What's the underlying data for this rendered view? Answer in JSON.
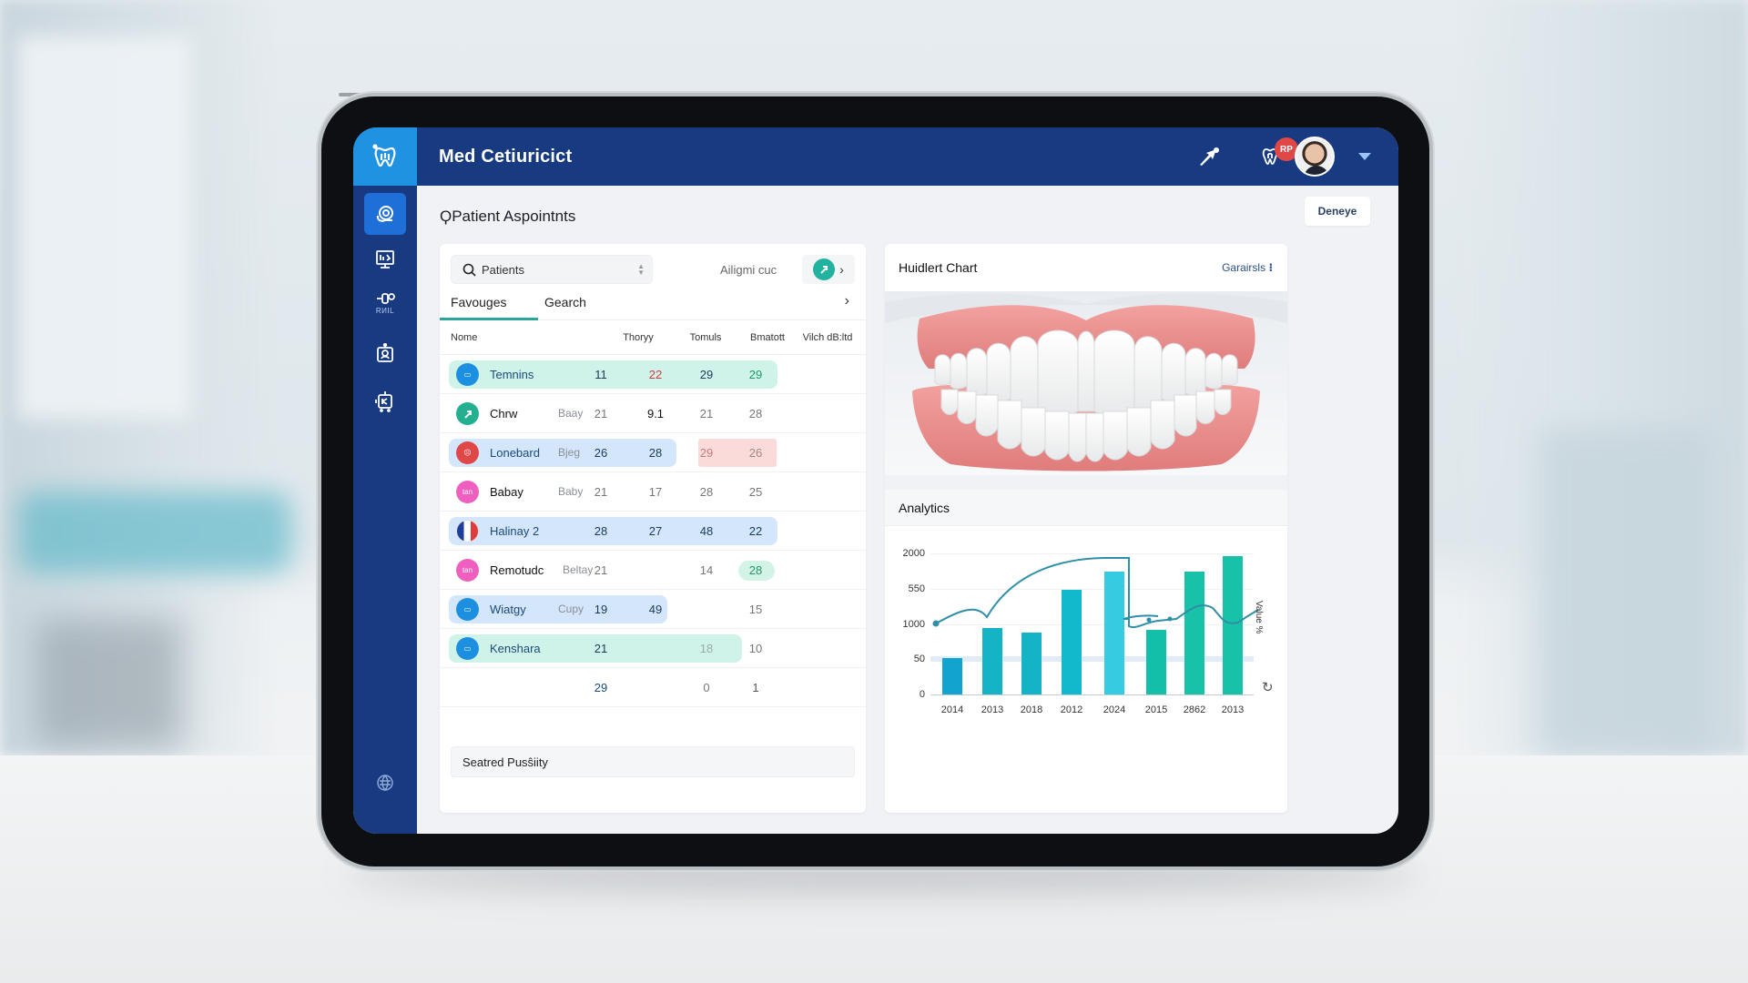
{
  "app": {
    "title": "Med Cetiuricict",
    "page_title": "ϘPatient Aspointnts",
    "top_button": "Deneye",
    "colors": {
      "header": "#173a80",
      "logo_bg": "#1f92e2",
      "accent_teal": "#22b3a0",
      "row_mint": "#d0f3e9",
      "row_blue": "#d3e6fb",
      "row_pink": "#fbdada",
      "negative": "#d23b3b",
      "positive": "#1f9a67"
    }
  },
  "header": {
    "icons": [
      "tooth-logo-icon",
      "send-icon",
      "tooth-icon",
      "notification-badge",
      "avatar",
      "chevron-down-icon"
    ],
    "badge_text": "RP"
  },
  "sidebar": {
    "items": [
      {
        "icon": "appointment-icon",
        "active": true
      },
      {
        "icon": "monitor-chart-icon",
        "active": false
      },
      {
        "icon": "dental-tool-icon",
        "label": "RИІL",
        "active": false
      },
      {
        "icon": "patient-card-icon",
        "active": false
      },
      {
        "icon": "report-icon",
        "active": false
      }
    ],
    "footer_icon": "globe-icon"
  },
  "patients_panel": {
    "search": {
      "value": "Patients"
    },
    "filter_label": "Ailigmi cuc",
    "tabs": [
      {
        "label": "Favouges",
        "active": true
      },
      {
        "label": "Gearch",
        "active": false
      }
    ],
    "columns": [
      "Nome",
      "Thoryy",
      "Tomuls",
      "Bmatott",
      "Vilch dB:ltd"
    ],
    "rows": [
      {
        "name": "Temnins",
        "sub": "",
        "values": [
          "11",
          "22",
          "29",
          "29"
        ],
        "icon_color": "#1c8fe0"
      },
      {
        "name": "Chrw",
        "sub": "Baay",
        "values": [
          "21",
          "9.1",
          "21",
          "28"
        ],
        "icon_color": "#22b090"
      },
      {
        "name": "Lonebard",
        "sub": "Bjeg",
        "values": [
          "26",
          "28",
          "29",
          "26"
        ],
        "icon_color": "#e04848"
      },
      {
        "name": "Babay",
        "sub": "Baby",
        "values": [
          "21",
          "17",
          "28",
          "25"
        ],
        "icon_color": "#ef5fc0"
      },
      {
        "name": "Halinay 2",
        "sub": "",
        "values": [
          "28",
          "27",
          "48",
          "22"
        ],
        "icon_color": "flag"
      },
      {
        "name": "Remotudc",
        "sub": "Beltay",
        "values": [
          "21",
          "",
          "14",
          "28"
        ],
        "icon_color": "#ef5fc0"
      },
      {
        "name": "Wiatgy",
        "sub": "Cupy",
        "values": [
          "19",
          "49",
          "",
          "15"
        ],
        "icon_color": "#1c8fe0"
      },
      {
        "name": "Kenshara",
        "sub": "",
        "values": [
          "21",
          "",
          "18",
          "10"
        ],
        "icon_color": "#1c8fe0"
      },
      {
        "name": "",
        "sub": "",
        "values": [
          "29",
          "",
          "0",
          "1"
        ],
        "icon_color": ""
      }
    ],
    "footer_input": "Seatred Pusŝiity"
  },
  "chart_panel": {
    "title": "Huidlert Chart",
    "link": "Garairsls",
    "image": "dental-teeth-illustration"
  },
  "analytics": {
    "title": "Analytics"
  },
  "chart_data": {
    "type": "bar",
    "title": "Analytics",
    "categories": [
      "2014",
      "2013",
      "2018",
      "2012",
      "2024",
      "2015",
      "2862",
      "2013"
    ],
    "y_tick_labels": [
      "2000",
      "550",
      "1000",
      "50",
      "0"
    ],
    "ylabel_right": "Value %",
    "series": [
      {
        "name": "bars",
        "type": "bar",
        "values_pct_of_axis": [
          26,
          47,
          44,
          74,
          87,
          46,
          87,
          98
        ]
      },
      {
        "name": "trend",
        "type": "line",
        "values_pct_of_axis": [
          60,
          70,
          96,
          98,
          50,
          55,
          74,
          68
        ]
      }
    ],
    "grid": true,
    "highlight_band_at": "50"
  }
}
